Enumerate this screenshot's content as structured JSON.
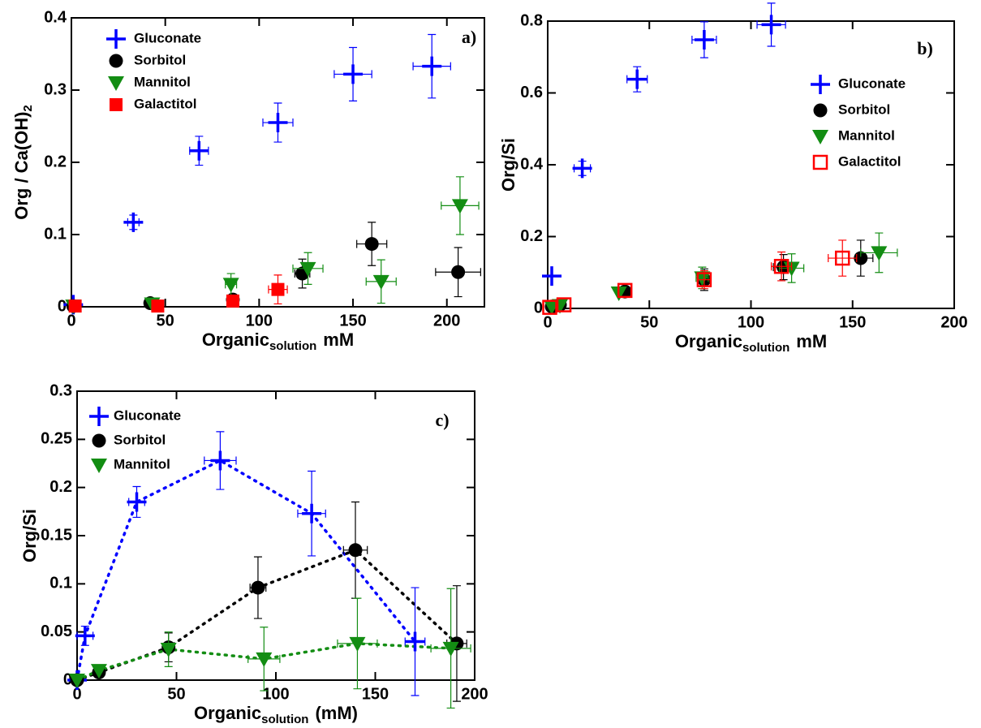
{
  "chart_data": [
    {
      "type": "scatter",
      "annotation": "a)",
      "x_label": {
        "text": "Organic",
        "subscript": "solution",
        "suffix": "mM"
      },
      "y_label": {
        "text": "Org / Ca(OH)",
        "subscript": "2"
      },
      "xlim": [
        0,
        220
      ],
      "xticks": [
        0,
        50,
        100,
        150,
        200
      ],
      "ylim": [
        0,
        0.4
      ],
      "yticks": [
        0,
        0.1,
        0.2,
        0.3,
        0.4
      ],
      "legend": "upper left",
      "line": false,
      "series": [
        {
          "name": "Gluconate",
          "color": "#0000ff",
          "marker": "plus",
          "x": [
            1,
            33,
            68,
            110,
            150,
            192
          ],
          "values": [
            0.003,
            0.117,
            0.216,
            0.255,
            0.322,
            0.333
          ],
          "xerr": [
            null,
            3,
            5,
            8,
            10,
            10
          ],
          "yerr": [
            null,
            0.01,
            0.02,
            0.027,
            0.037,
            0.044
          ]
        },
        {
          "name": "Sorbitol",
          "color": "#000000",
          "marker": "circle",
          "x": [
            1,
            42,
            86,
            123,
            160,
            206
          ],
          "values": [
            0.001,
            0.005,
            0.01,
            0.046,
            0.087,
            0.048
          ],
          "xerr": [
            null,
            null,
            null,
            4,
            8,
            12
          ],
          "yerr": [
            null,
            null,
            null,
            0.02,
            0.03,
            0.034
          ]
        },
        {
          "name": "Mannitol",
          "color": "#138d13",
          "marker": "triangle",
          "x": [
            1,
            43,
            85,
            126,
            165,
            207
          ],
          "values": [
            0.001,
            0.004,
            0.031,
            0.053,
            0.035,
            0.14
          ],
          "xerr": [
            null,
            null,
            3,
            8,
            8,
            10
          ],
          "yerr": [
            null,
            null,
            0.015,
            0.022,
            0.03,
            0.04
          ]
        },
        {
          "name": "Galactitol",
          "color": "#ff0000",
          "marker": "square",
          "x": [
            2,
            46,
            86,
            110
          ],
          "values": [
            0.001,
            0.001,
            0.008,
            0.024
          ],
          "xerr": [
            null,
            null,
            3,
            5
          ],
          "yerr": [
            null,
            null,
            0.008,
            0.02
          ]
        }
      ]
    },
    {
      "type": "scatter",
      "annotation": "b)",
      "x_label": {
        "text": "Organic",
        "subscript": "solution",
        "suffix": "mM"
      },
      "y_label": "Org/Si",
      "xlim": [
        0,
        200
      ],
      "xticks": [
        0,
        50,
        100,
        150,
        200
      ],
      "ylim": [
        0,
        0.8
      ],
      "yticks": [
        0,
        0.2,
        0.4,
        0.6,
        0.8
      ],
      "legend": "upper right",
      "line": false,
      "series": [
        {
          "name": "Gluconate",
          "color": "#0000ff",
          "marker": "plus",
          "x": [
            2,
            17,
            44,
            77,
            110
          ],
          "values": [
            0.09,
            0.39,
            0.638,
            0.748,
            0.79
          ],
          "xerr": [
            null,
            4,
            5,
            6,
            7
          ],
          "yerr": [
            null,
            0.02,
            0.035,
            0.05,
            0.06
          ]
        },
        {
          "name": "Sorbitol",
          "color": "#000000",
          "marker": "circle",
          "x": [
            2,
            6,
            38,
            77,
            116,
            154
          ],
          "values": [
            0.005,
            0.01,
            0.047,
            0.08,
            0.115,
            0.14
          ],
          "xerr": [
            null,
            null,
            null,
            3,
            5,
            6
          ],
          "yerr": [
            null,
            null,
            null,
            0.03,
            0.035,
            0.05
          ]
        },
        {
          "name": "Mannitol",
          "color": "#138d13",
          "marker": "triangle",
          "x": [
            2,
            6,
            35,
            76,
            120,
            163
          ],
          "values": [
            0.005,
            0.008,
            0.043,
            0.085,
            0.112,
            0.155
          ],
          "xerr": [
            null,
            null,
            null,
            3,
            6,
            9
          ],
          "yerr": [
            null,
            null,
            null,
            0.03,
            0.04,
            0.055
          ]
        },
        {
          "name": "Galactitol",
          "color": "#ff0000",
          "marker": "square-open",
          "x": [
            1,
            8,
            38,
            77,
            115,
            145
          ],
          "values": [
            0.003,
            0.01,
            0.05,
            0.08,
            0.117,
            0.14
          ],
          "xerr": [
            null,
            null,
            null,
            3,
            5,
            7
          ],
          "yerr": [
            null,
            null,
            null,
            0.025,
            0.04,
            0.05
          ]
        }
      ]
    },
    {
      "type": "scatter",
      "annotation": "c)",
      "x_label": {
        "text": "Organic",
        "subscript": "solution",
        "suffix": "(mM)"
      },
      "y_label": "Org/Si",
      "xlim": [
        0,
        200
      ],
      "xticks": [
        0,
        50,
        100,
        150,
        200
      ],
      "ylim": [
        0,
        0.3
      ],
      "yticks": [
        0,
        0.05,
        0.1,
        0.15,
        0.2,
        0.25,
        0.3
      ],
      "legend": "upper left",
      "line": true,
      "series": [
        {
          "name": "Gluconate",
          "color": "#0000ff",
          "marker": "plus",
          "x": [
            0,
            4,
            30,
            72,
            118,
            170
          ],
          "values": [
            0,
            0.046,
            0.185,
            0.228,
            0.173,
            0.04
          ],
          "xerr": [
            null,
            4,
            4,
            8,
            7,
            5
          ],
          "yerr": [
            null,
            0.01,
            0.016,
            0.03,
            0.044,
            0.056
          ]
        },
        {
          "name": "Sorbitol",
          "color": "#000000",
          "marker": "circle",
          "x": [
            0,
            11,
            46,
            91,
            140,
            191
          ],
          "values": [
            0,
            0.008,
            0.034,
            0.096,
            0.135,
            0.038
          ],
          "xerr": [
            null,
            null,
            null,
            4,
            6,
            5
          ],
          "yerr": [
            null,
            null,
            0.015,
            0.032,
            0.05,
            0.06
          ]
        },
        {
          "name": "Mannitol",
          "color": "#138d13",
          "marker": "triangle",
          "x": [
            0,
            11,
            46,
            94,
            141,
            188
          ],
          "values": [
            0,
            0.01,
            0.032,
            0.022,
            0.038,
            0.033
          ],
          "xerr": [
            null,
            null,
            null,
            8,
            10,
            10
          ],
          "yerr": [
            null,
            null,
            0.018,
            0.033,
            0.047,
            0.062
          ]
        }
      ]
    }
  ]
}
